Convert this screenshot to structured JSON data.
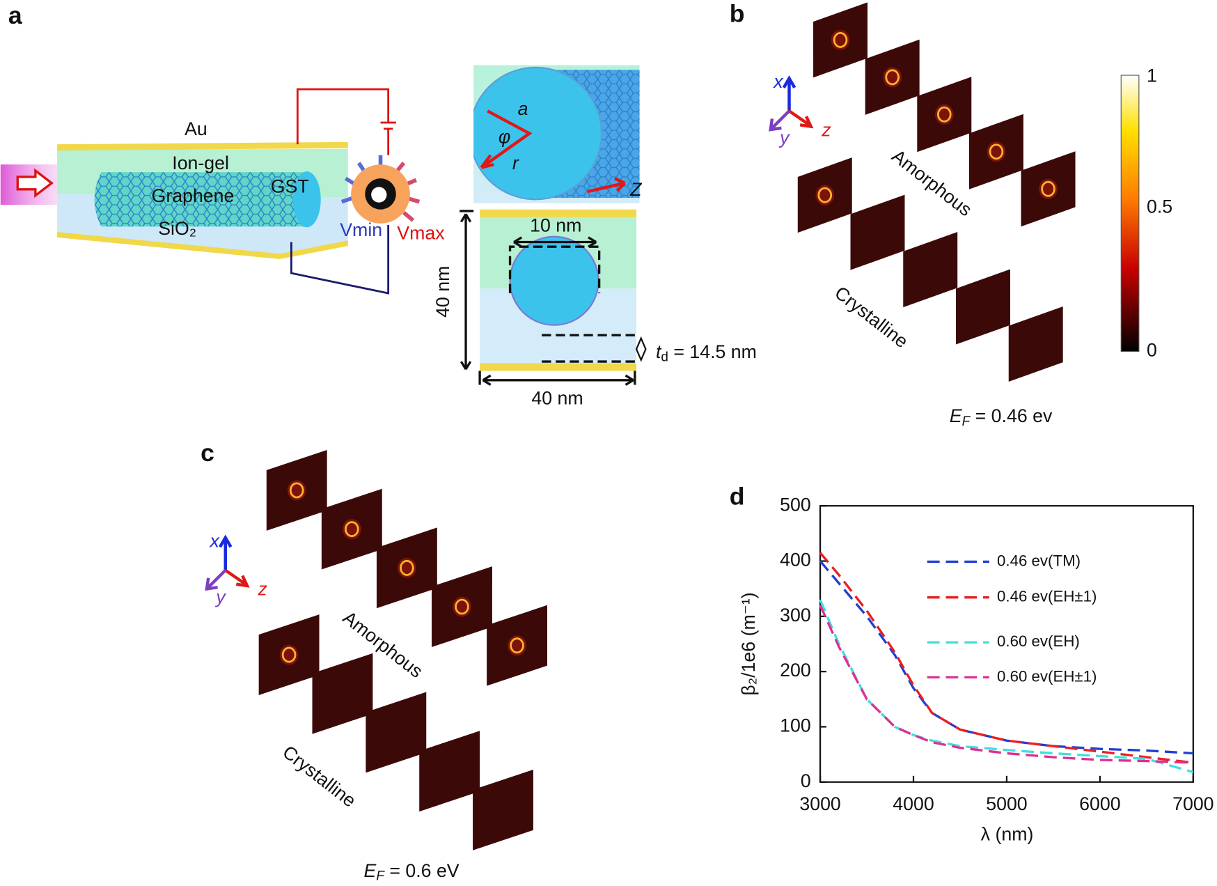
{
  "panel_a": {
    "label": "a",
    "layers": {
      "au": "Au",
      "ion_gel": "Ion-gel",
      "graphene": "Graphene",
      "gst": "GST",
      "sio2": "SiO₂"
    },
    "vmin": "Vmin",
    "vmax": "Vmax",
    "inset_top": {
      "a": "a",
      "phi": "φ",
      "r": "r",
      "z": "Z"
    },
    "inset_bottom": {
      "width_inner": "10 nm",
      "height": "40 nm",
      "width": "40 nm",
      "td": {
        "symbol": "t",
        "sub": "d",
        "value": " = 14.5 nm"
      }
    }
  },
  "panel_b": {
    "label": "b",
    "axes": {
      "x": "x",
      "y": "y",
      "z": "z"
    },
    "amorphous": "Amorphous",
    "crystalline": "Crystalline",
    "colorbar": {
      "max": "1",
      "mid": "0.5",
      "min": "0"
    },
    "ef": {
      "symbol": "E",
      "sub": "F",
      "value": " = 0.46 ev"
    }
  },
  "panel_c": {
    "label": "c",
    "axes": {
      "x": "x",
      "y": "y",
      "z": "z"
    },
    "amorphous": "Amorphous",
    "crystalline": "Crystalline",
    "ef": {
      "symbol": "E",
      "sub": "F",
      "value": " = 0.6 eV"
    }
  },
  "chart_data": {
    "type": "line",
    "label": "d",
    "x_label": "λ (nm)",
    "y_label": "β₂/1e6 (m⁻¹)",
    "x": [
      3000,
      3200,
      3500,
      3800,
      4000,
      4200,
      4500,
      5000,
      5500,
      6000,
      6500,
      7000
    ],
    "series": [
      {
        "name": "0.46 ev(TM)",
        "color": "#1f3fd6",
        "values": [
          400,
          360,
          300,
          230,
          170,
          125,
          95,
          75,
          65,
          60,
          57,
          52
        ]
      },
      {
        "name": "0.46 ev(EH±1)",
        "color": "#e82020",
        "values": [
          415,
          375,
          310,
          235,
          175,
          125,
          95,
          75,
          65,
          55,
          45,
          35
        ]
      },
      {
        "name": "0.60 ev(EH)",
        "color": "#3fdede",
        "values": [
          330,
          250,
          150,
          100,
          85,
          75,
          65,
          58,
          52,
          47,
          42,
          18
        ]
      },
      {
        "name": "0.60 ev(EH±1)",
        "color": "#dd2f94",
        "values": [
          320,
          245,
          150,
          100,
          85,
          72,
          62,
          52,
          45,
          40,
          38,
          35
        ]
      }
    ],
    "xlim": [
      3000,
      7000
    ],
    "xticks": [
      3000,
      4000,
      5000,
      6000,
      7000
    ],
    "ylim": [
      0,
      500
    ],
    "yticks": [
      0,
      100,
      200,
      300,
      400,
      500
    ],
    "line_style": "dashed"
  }
}
